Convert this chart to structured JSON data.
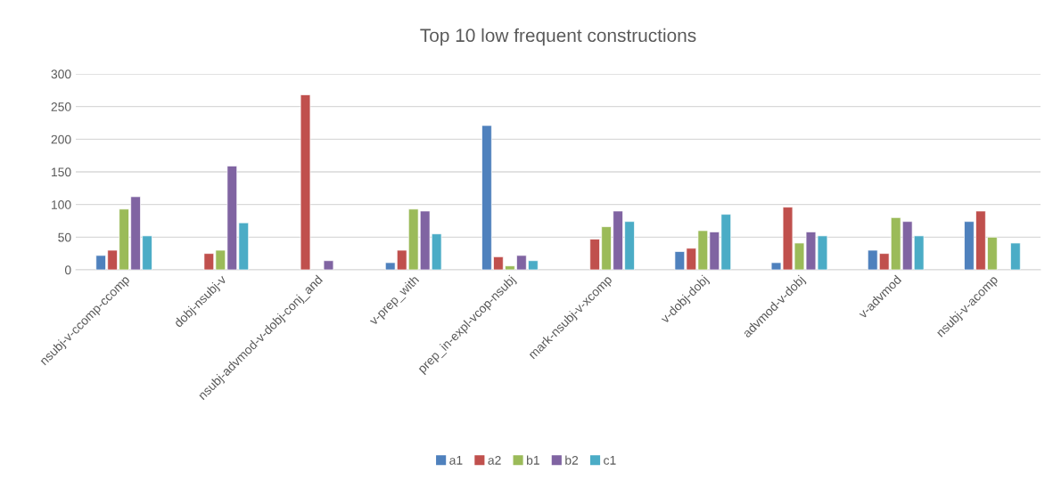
{
  "chart_data": {
    "type": "bar",
    "title": "Top 10 low frequent constructions",
    "categories": [
      "nsubj-v-ccomp-ccomp",
      "dobj-nsubj-v",
      "nsubj-advmod-v-dobj-conj_and",
      "v-prep_with",
      "prep_in-expl-vcop-nsubj",
      "mark-nsubj-v-xcomp",
      "v-dobj-dobj",
      "advmod-v-dobj",
      "v-advmod",
      "nsubj-v-acomp"
    ],
    "series": [
      {
        "name": "a1",
        "color": "#4f81bd",
        "values": [
          22,
          null,
          null,
          11,
          221,
          null,
          28,
          11,
          30,
          74
        ]
      },
      {
        "name": "a2",
        "color": "#c0504d",
        "values": [
          30,
          25,
          268,
          30,
          20,
          47,
          33,
          96,
          25,
          90
        ]
      },
      {
        "name": "b1",
        "color": "#9bbb59",
        "values": [
          93,
          30,
          null,
          93,
          6,
          66,
          60,
          41,
          80,
          50
        ]
      },
      {
        "name": "b2",
        "color": "#8064a2",
        "values": [
          112,
          159,
          14,
          90,
          22,
          90,
          58,
          58,
          74,
          null
        ]
      },
      {
        "name": "c1",
        "color": "#4bacc6",
        "values": [
          52,
          72,
          null,
          55,
          14,
          74,
          85,
          52,
          52,
          41
        ]
      }
    ],
    "ylim": [
      0,
      300
    ],
    "yticks": [
      0,
      50,
      100,
      150,
      200,
      250,
      300
    ],
    "grid": "y",
    "legend": "bottom"
  }
}
